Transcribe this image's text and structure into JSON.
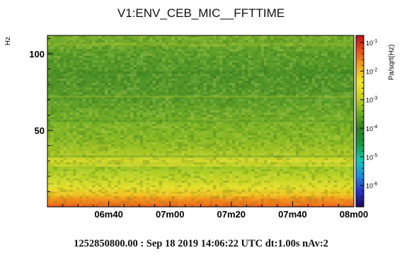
{
  "chart_data": {
    "type": "heatmap",
    "title": "V1:ENV_CEB_MIC__FFTTIME",
    "ylabel": "Hz",
    "colorbar_label": "Pa/sqrt(Hz)",
    "x_ticks": [
      "06m40",
      "07m00",
      "07m20",
      "07m40",
      "08m00"
    ],
    "x_tick_seconds": [
      400,
      420,
      440,
      460,
      480
    ],
    "xlim_seconds": [
      380,
      480
    ],
    "y_ticks": [
      50,
      100
    ],
    "ylim": [
      0,
      112
    ],
    "colorbar_ticks": [
      {
        "mantissa": "10",
        "exponent": "-1"
      },
      {
        "mantissa": "10",
        "exponent": "-2"
      },
      {
        "mantissa": "10",
        "exponent": "-3"
      },
      {
        "mantissa": "10",
        "exponent": "-4"
      },
      {
        "mantissa": "10",
        "exponent": "-5"
      },
      {
        "mantissa": "10",
        "exponent": "-6"
      }
    ],
    "colorscale": [
      "#1a0a5c",
      "#2b30c8",
      "#1a8ee0",
      "#16c9b0",
      "#1a9a3a",
      "#2f7f22",
      "#6fae1f",
      "#c8d21b",
      "#f0e82a",
      "#f5a81a",
      "#e8501a",
      "#c0101a"
    ],
    "profile_by_frequency": [
      {
        "hz": 0,
        "color": "#e8501a"
      },
      {
        "hz": 6,
        "color": "#f2a21a"
      },
      {
        "hz": 12,
        "color": "#e6df2a"
      },
      {
        "hz": 20,
        "color": "#bcd325"
      },
      {
        "hz": 26,
        "color": "#9cc524"
      },
      {
        "hz": 30,
        "color": "#d6d92a"
      },
      {
        "hz": 35,
        "color": "#a8c624"
      },
      {
        "hz": 45,
        "color": "#86b823"
      },
      {
        "hz": 55,
        "color": "#7bb226"
      },
      {
        "hz": 70,
        "color": "#5a9c28"
      },
      {
        "hz": 85,
        "color": "#4f9327"
      },
      {
        "hz": 100,
        "color": "#5c9f28"
      },
      {
        "hz": 112,
        "color": "#7db12a"
      }
    ]
  },
  "footer": "1252850800.00 : Sep 18 2019 14:06:22 UTC dt:1.00s nAv:2"
}
